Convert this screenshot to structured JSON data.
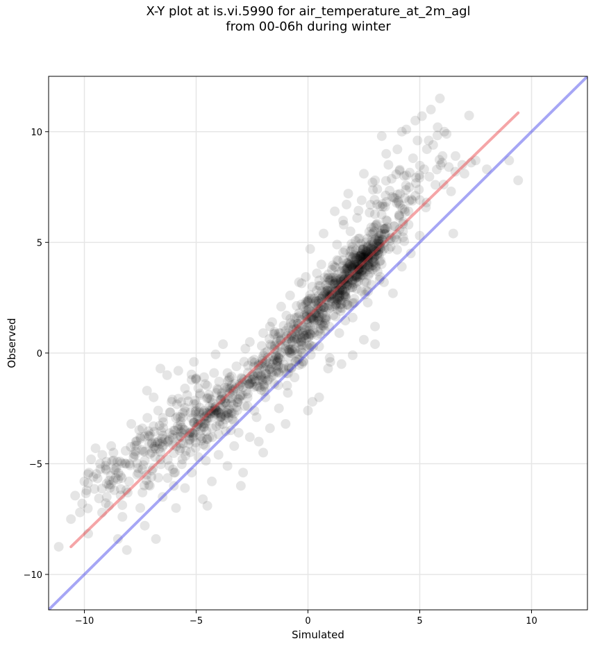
{
  "title_line1": "X-Y plot at is.vi.5990 for air_temperature_at_2m_agl",
  "title_line2": "from 00-06h during winter",
  "chart_data": {
    "type": "scatter",
    "title": "X-Y plot at is.vi.5990 for air_temperature_at_2m_agl\nfrom 00-06h during winter",
    "xlabel": "Simulated",
    "ylabel": "Observed",
    "xlim": [
      -11.6,
      12.5
    ],
    "ylim": [
      -11.6,
      12.5
    ],
    "x_ticks": [
      -10,
      -5,
      0,
      5,
      10
    ],
    "y_ticks": [
      -10,
      -5,
      0,
      5,
      10
    ],
    "x_tick_labels": [
      "−10",
      "−5",
      "0",
      "5",
      "10"
    ],
    "y_tick_labels": [
      "−10",
      "−5",
      "0",
      "5",
      "10"
    ],
    "grid": true,
    "point_color": "#000000",
    "point_alpha": 0.1,
    "points": [
      [
        -10.6,
        -7.5
      ],
      [
        -10.2,
        -7.2
      ],
      [
        -10.1,
        -6.8
      ],
      [
        -10.0,
        -5.8
      ],
      [
        -9.9,
        -6.2
      ],
      [
        -9.8,
        -5.4
      ],
      [
        -9.7,
        -4.8
      ],
      [
        -9.6,
        -5.6
      ],
      [
        -9.5,
        -4.3
      ],
      [
        -9.3,
        -5.0
      ],
      [
        -9.2,
        -4.6
      ],
      [
        -9.0,
        -5.9
      ],
      [
        -8.9,
        -6.9
      ],
      [
        -8.8,
        -4.2
      ],
      [
        -8.6,
        -5.3
      ],
      [
        -8.5,
        -8.4
      ],
      [
        -8.4,
        -4.9
      ],
      [
        -8.3,
        -7.4
      ],
      [
        -8.1,
        -8.9
      ],
      [
        -8.0,
        -5.8
      ],
      [
        -7.9,
        -3.2
      ],
      [
        -7.8,
        -4.7
      ],
      [
        -7.6,
        -5.2
      ],
      [
        -7.5,
        -3.8
      ],
      [
        -7.4,
        -6.3
      ],
      [
        -7.3,
        -7.8
      ],
      [
        -7.2,
        -1.7
      ],
      [
        -7.1,
        -4.1
      ],
      [
        -7.0,
        -5.6
      ],
      [
        -6.9,
        -3.3
      ],
      [
        -6.8,
        -8.4
      ],
      [
        -6.7,
        -2.6
      ],
      [
        -6.6,
        -4.8
      ],
      [
        -6.5,
        -6.5
      ],
      [
        -6.4,
        -3.9
      ],
      [
        -6.3,
        -1.0
      ],
      [
        -6.2,
        -5.1
      ],
      [
        -6.1,
        -2.2
      ],
      [
        -6.0,
        -3.5
      ],
      [
        -5.9,
        -7.0
      ],
      [
        -5.8,
        -0.8
      ],
      [
        -5.7,
        -4.3
      ],
      [
        -5.6,
        -2.9
      ],
      [
        -5.5,
        -6.1
      ],
      [
        -5.4,
        -1.9
      ],
      [
        -5.3,
        -3.6
      ],
      [
        -5.2,
        -5.4
      ],
      [
        -5.1,
        -0.4
      ],
      [
        -5.0,
        -2.3
      ],
      [
        -4.9,
        -4.7
      ],
      [
        -4.8,
        -3.1
      ],
      [
        -4.7,
        -6.6
      ],
      [
        -4.6,
        -1.4
      ],
      [
        -4.5,
        -3.9
      ],
      [
        -4.4,
        -2.6
      ],
      [
        -4.3,
        -5.8
      ],
      [
        -4.2,
        -0.9
      ],
      [
        -4.1,
        -3.3
      ],
      [
        -4.0,
        -4.6
      ],
      [
        -3.9,
        -2.1
      ],
      [
        -3.8,
        0.4
      ],
      [
        -3.7,
        -3.0
      ],
      [
        -3.6,
        -5.1
      ],
      [
        -3.5,
        -1.6
      ],
      [
        -3.4,
        -2.7
      ],
      [
        -3.3,
        -4.2
      ],
      [
        -3.2,
        -0.6
      ],
      [
        -3.1,
        -3.6
      ],
      [
        -3.0,
        -1.9
      ],
      [
        -2.9,
        -5.4
      ],
      [
        -2.8,
        0.2
      ],
      [
        -2.7,
        -2.4
      ],
      [
        -2.6,
        -3.8
      ],
      [
        -2.5,
        -1.2
      ],
      [
        -2.4,
        -0.3
      ],
      [
        -2.3,
        -2.9
      ],
      [
        -2.2,
        -4.0
      ],
      [
        -2.1,
        -1.0
      ],
      [
        -2.0,
        0.9
      ],
      [
        -1.9,
        -2.0
      ],
      [
        -1.8,
        -0.2
      ],
      [
        -1.7,
        -3.4
      ],
      [
        -1.6,
        1.4
      ],
      [
        -1.5,
        -1.4
      ],
      [
        -1.4,
        0.5
      ],
      [
        -1.3,
        -2.5
      ],
      [
        -1.2,
        2.1
      ],
      [
        -1.1,
        -0.7
      ],
      [
        -1.0,
        1.0
      ],
      [
        -0.9,
        -1.8
      ],
      [
        -0.8,
        2.6
      ],
      [
        -0.7,
        0.1
      ],
      [
        -0.6,
        -1.1
      ],
      [
        -0.5,
        1.6
      ],
      [
        -0.4,
        3.2
      ],
      [
        -0.3,
        0.7
      ],
      [
        -0.2,
        -0.4
      ],
      [
        -0.1,
        2.3
      ],
      [
        0.0,
        1.2
      ],
      [
        0.1,
        4.7
      ],
      [
        0.2,
        -2.2
      ],
      [
        0.3,
        1.8
      ],
      [
        0.4,
        3.6
      ],
      [
        0.5,
        0.3
      ],
      [
        0.6,
        2.8
      ],
      [
        0.7,
        5.4
      ],
      [
        0.8,
        1.5
      ],
      [
        0.9,
        -0.7
      ],
      [
        1.0,
        3.3
      ],
      [
        1.1,
        2.1
      ],
      [
        1.2,
        6.4
      ],
      [
        1.3,
        4.2
      ],
      [
        1.4,
        0.9
      ],
      [
        1.5,
        3.7
      ],
      [
        1.6,
        5.8
      ],
      [
        1.7,
        2.5
      ],
      [
        1.8,
        7.2
      ],
      [
        1.9,
        4.6
      ],
      [
        2.0,
        1.6
      ],
      [
        2.1,
        3.9
      ],
      [
        2.2,
        6.1
      ],
      [
        2.3,
        4.4
      ],
      [
        2.4,
        2.8
      ],
      [
        2.5,
        8.1
      ],
      [
        2.6,
        5.0
      ],
      [
        2.7,
        3.5
      ],
      [
        2.8,
        6.7
      ],
      [
        2.9,
        4.1
      ],
      [
        3.0,
        1.2
      ],
      [
        3.1,
        7.4
      ],
      [
        3.2,
        5.3
      ],
      [
        3.3,
        9.8
      ],
      [
        3.4,
        3.2
      ],
      [
        3.5,
        6.0
      ],
      [
        3.6,
        8.5
      ],
      [
        3.7,
        4.8
      ],
      [
        3.8,
        2.7
      ],
      [
        3.9,
        7.0
      ],
      [
        4.0,
        9.2
      ],
      [
        4.1,
        5.6
      ],
      [
        4.2,
        3.9
      ],
      [
        4.3,
        8.0
      ],
      [
        4.4,
        10.1
      ],
      [
        4.5,
        6.4
      ],
      [
        4.6,
        4.5
      ],
      [
        4.7,
        8.8
      ],
      [
        4.8,
        7.1
      ],
      [
        4.9,
        9.6
      ],
      [
        5.0,
        5.3
      ],
      [
        5.1,
        10.7
      ],
      [
        5.2,
        8.3
      ],
      [
        5.3,
        6.8
      ],
      [
        5.5,
        11.0
      ],
      [
        5.6,
        9.4
      ],
      [
        5.7,
        7.6
      ],
      [
        5.8,
        10.2
      ],
      [
        5.9,
        11.5
      ],
      [
        6.0,
        8.6
      ],
      [
        6.2,
        9.9
      ],
      [
        6.4,
        7.3
      ],
      [
        6.5,
        5.4
      ],
      [
        6.6,
        8.9
      ],
      [
        7.0,
        8.1
      ],
      [
        7.5,
        8.7
      ],
      [
        8.0,
        8.3
      ],
      [
        9.0,
        8.7
      ],
      [
        9.4,
        7.8
      ],
      [
        -7.5,
        -7.0
      ],
      [
        -6.0,
        -6.0
      ],
      [
        -4.5,
        -6.9
      ],
      [
        -3.0,
        -6.0
      ],
      [
        -2.0,
        -4.5
      ],
      [
        -1.0,
        -3.2
      ],
      [
        0.0,
        -2.6
      ],
      [
        0.5,
        -2.0
      ],
      [
        1.0,
        -0.4
      ],
      [
        2.0,
        -0.1
      ],
      [
        3.0,
        0.4
      ],
      [
        2.5,
        0.6
      ],
      [
        1.5,
        -0.5
      ],
      [
        -9.0,
        -6.5
      ],
      [
        -8.7,
        -4.5
      ],
      [
        -7.7,
        -4.0
      ],
      [
        -6.9,
        -2.0
      ],
      [
        -6.6,
        -0.7
      ],
      [
        -5.5,
        -1.6
      ],
      [
        -5.0,
        -1.2
      ],
      [
        -4.1,
        -1.8
      ],
      [
        -3.6,
        -0.9
      ],
      [
        -2.6,
        0.5
      ],
      [
        -2.3,
        -1.5
      ],
      [
        -1.7,
        1.2
      ],
      [
        -1.3,
        0.9
      ],
      [
        -0.8,
        0.0
      ],
      [
        -0.4,
        1.8
      ],
      [
        0.2,
        3.0
      ],
      [
        0.6,
        4.0
      ],
      [
        1.3,
        4.9
      ],
      [
        1.9,
        5.5
      ],
      [
        2.4,
        6.9
      ],
      [
        3.0,
        7.8
      ],
      [
        3.5,
        9.0
      ],
      [
        4.2,
        10.0
      ],
      [
        4.8,
        10.5
      ],
      [
        5.4,
        9.6
      ],
      [
        6.1,
        10.0
      ],
      [
        6.3,
        8.4
      ],
      [
        6.9,
        8.5
      ],
      [
        7.3,
        8.6
      ],
      [
        4.5,
        5.8
      ]
    ],
    "dense_clusters": [
      {
        "cx": 2.4,
        "cy": 4.1,
        "sx": 0.7,
        "sy": 0.7,
        "n": 220
      },
      {
        "cx": 0.2,
        "cy": 1.6,
        "sx": 1.1,
        "sy": 1.1,
        "n": 150
      },
      {
        "cx": 1.6,
        "cy": 3.0,
        "sx": 1.1,
        "sy": 1.2,
        "n": 160
      },
      {
        "cx": -4.3,
        "cy": -2.9,
        "sx": 1.4,
        "sy": 1.1,
        "n": 170
      },
      {
        "cx": -1.8,
        "cy": -0.6,
        "sx": 1.3,
        "sy": 1.2,
        "n": 150
      },
      {
        "cx": -6.3,
        "cy": -3.6,
        "sx": 1.3,
        "sy": 1.4,
        "n": 110
      },
      {
        "cx": 3.8,
        "cy": 6.6,
        "sx": 1.3,
        "sy": 1.6,
        "n": 90
      },
      {
        "cx": -8.6,
        "cy": -5.5,
        "sx": 0.9,
        "sy": 1.0,
        "n": 40
      }
    ],
    "lines": [
      {
        "name": "regression",
        "color": "#e8383b",
        "alpha": 0.45,
        "x": [
          -10.6,
          9.4
        ],
        "y": [
          -8.75,
          10.85
        ]
      },
      {
        "name": "one-to-one",
        "color": "#3a3ae8",
        "alpha": 0.45,
        "x": [
          -11.6,
          12.5
        ],
        "y": [
          -11.6,
          12.5
        ]
      }
    ]
  }
}
